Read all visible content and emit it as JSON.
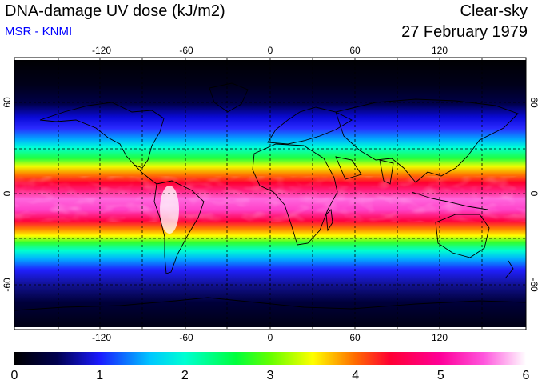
{
  "header": {
    "title": "DNA-damage UV dose (kJ/m2)",
    "source": "MSR - KNMI",
    "sky_condition": "Clear-sky",
    "date": "27 February 1979"
  },
  "colors": {
    "source_text": "#0000ff",
    "coastline": "#000000",
    "grid": "#000000"
  },
  "map": {
    "projection": "equirectangular",
    "lon_range": [
      -180,
      180
    ],
    "lat_range": [
      -90,
      90
    ],
    "lon_ticks": [
      {
        "value": -120,
        "label": "-120"
      },
      {
        "value": -60,
        "label": "-60"
      },
      {
        "value": 0,
        "label": "0"
      },
      {
        "value": 60,
        "label": "60"
      },
      {
        "value": 120,
        "label": "120"
      }
    ],
    "lat_ticks": [
      {
        "value": 60,
        "label": "60"
      },
      {
        "value": 0,
        "label": "0"
      },
      {
        "value": -60,
        "label": "-60"
      }
    ],
    "gridlines": "dashed every 30 degrees"
  },
  "colorbar": {
    "min": 0,
    "max": 6,
    "labels": [
      "0",
      "1",
      "2",
      "3",
      "4",
      "5",
      "6"
    ],
    "stops": [
      {
        "value": 0.0,
        "color": "#000000"
      },
      {
        "value": 0.5,
        "color": "#00004f"
      },
      {
        "value": 1.0,
        "color": "#1a1aff"
      },
      {
        "value": 1.6,
        "color": "#00c8ff"
      },
      {
        "value": 2.0,
        "color": "#00ffd2"
      },
      {
        "value": 2.6,
        "color": "#00ff3c"
      },
      {
        "value": 3.0,
        "color": "#64ff00"
      },
      {
        "value": 3.5,
        "color": "#ffff00"
      },
      {
        "value": 4.0,
        "color": "#ff6a00"
      },
      {
        "value": 4.4,
        "color": "#ff0033"
      },
      {
        "value": 5.0,
        "color": "#ff0099"
      },
      {
        "value": 5.5,
        "color": "#ff55dd"
      },
      {
        "value": 6.0,
        "color": "#ffffff"
      }
    ]
  }
}
